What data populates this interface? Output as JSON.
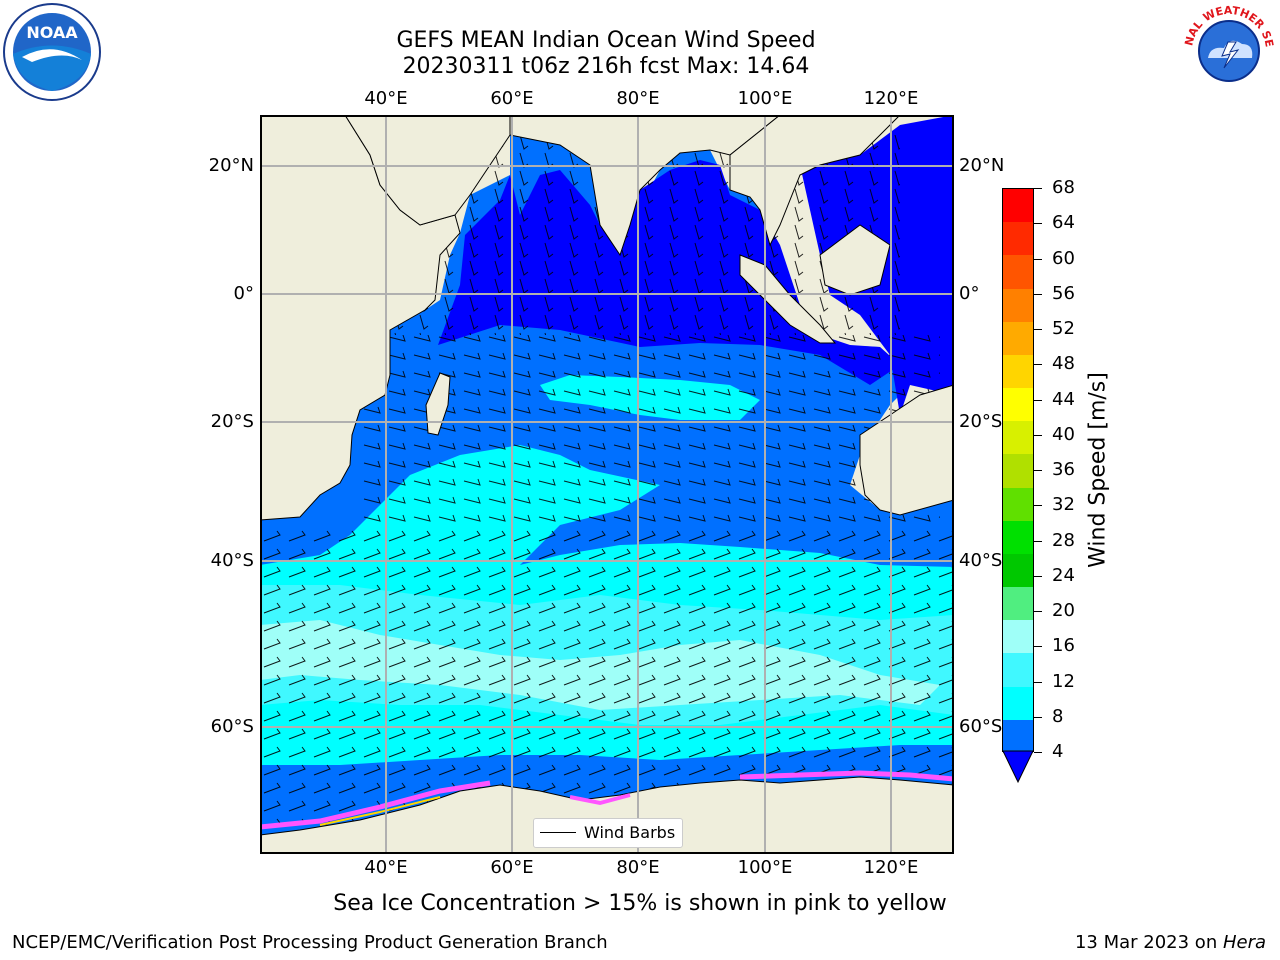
{
  "title": {
    "line1": "GEFS MEAN Indian Ocean Wind Speed",
    "line2": "20230311 t06z 216h fcst   Max: 14.64"
  },
  "axes": {
    "lon_ticks": [
      "40°E",
      "60°E",
      "80°E",
      "100°E",
      "120°E"
    ],
    "lat_ticks": [
      "20°N",
      "0°",
      "20°S",
      "40°S",
      "60°S"
    ]
  },
  "colorbar": {
    "label": "Wind Speed [m/s]",
    "ticks": [
      "68",
      "64",
      "60",
      "56",
      "52",
      "48",
      "44",
      "40",
      "36",
      "32",
      "28",
      "24",
      "20",
      "16",
      "12",
      "8",
      "4"
    ],
    "colors": [
      "#ff0000",
      "#ff2a00",
      "#ff5500",
      "#ff8000",
      "#ffaa00",
      "#ffd500",
      "#ffff00",
      "#d8f000",
      "#b0e000",
      "#60e000",
      "#00e000",
      "#00c800",
      "#50ee80",
      "#9ffff8",
      "#40f8ff",
      "#00ffff",
      "#0070ff"
    ],
    "under_color": "#0000ff"
  },
  "legend": {
    "label": "Wind Barbs"
  },
  "caption": "Sea Ice Concentration > 15% is shown in pink to yellow",
  "footer": {
    "left": "NCEP/EMC/Verification Post Processing Product Generation Branch",
    "right_date": "13 Mar 2023 on ",
    "right_host": "Hera"
  },
  "logos": {
    "noaa": "NOAA",
    "nws": "NATIONAL WEATHER SERVICE"
  },
  "map_colors": {
    "land": "#efeedc",
    "deep_blue": "#0000ff",
    "mid_blue": "#0070ff",
    "cyan": "#00ffff",
    "light_cyan": "#40f8ff",
    "pale_cyan": "#9ffff8"
  }
}
